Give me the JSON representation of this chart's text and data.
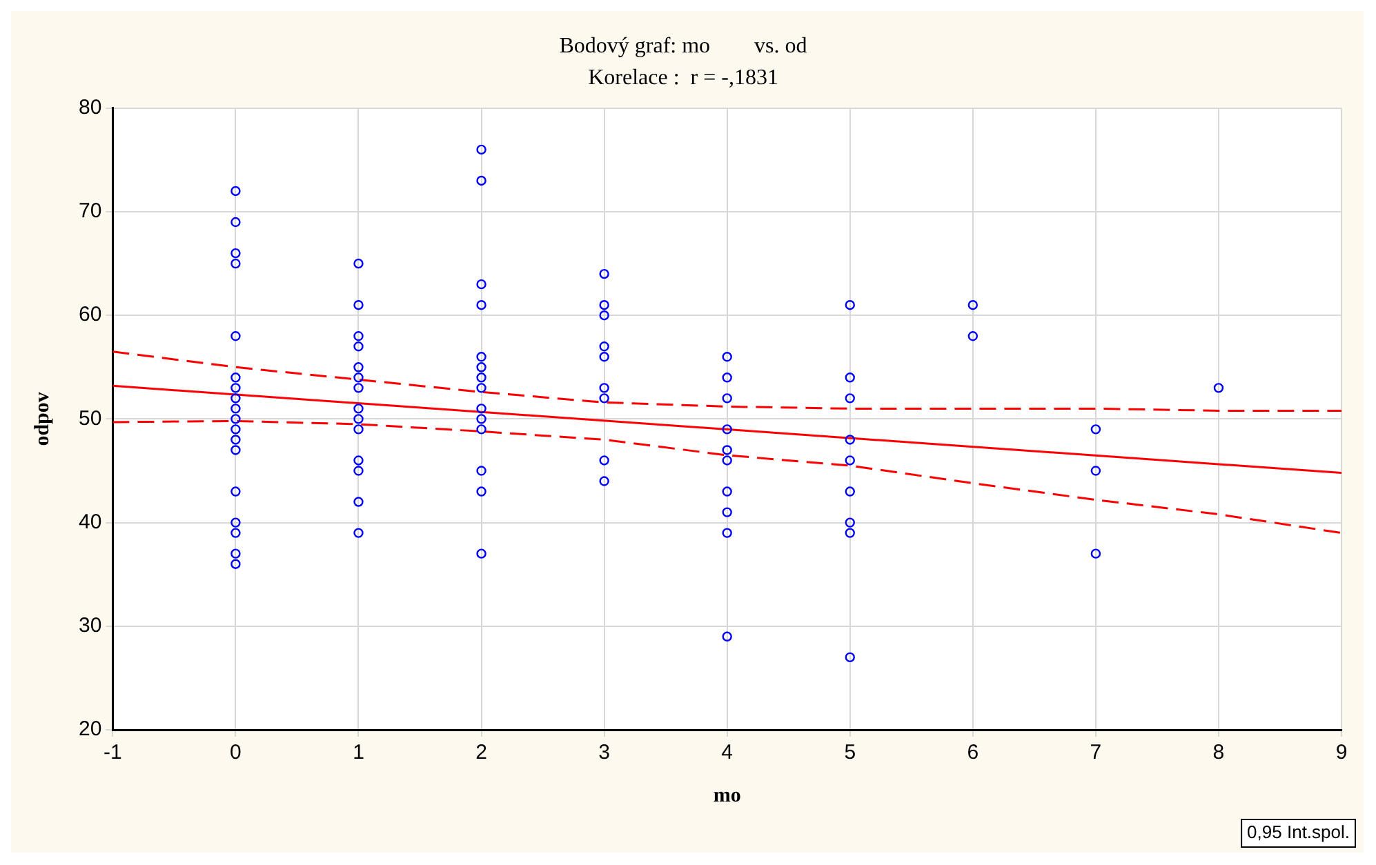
{
  "chart_data": {
    "type": "scatter",
    "title": "Bodový graf: mo        vs. od",
    "subtitle": "Korelace :  r = -,1831",
    "xlabel": "mo",
    "ylabel": "odpov",
    "xlim": [
      -1,
      9
    ],
    "xticks": [
      -1,
      0,
      1,
      2,
      3,
      4,
      5,
      6,
      7,
      8,
      9
    ],
    "ylim": [
      20,
      80
    ],
    "yticks": [
      20,
      30,
      40,
      50,
      60,
      70,
      80
    ],
    "grid": true,
    "legend": false,
    "marker": "circle",
    "annotations": [
      "0,95 Int.spol."
    ],
    "series": [
      {
        "type": "scatter",
        "color": "#0000ff",
        "x": [
          0,
          0,
          0,
          0,
          0,
          0,
          0,
          0,
          0,
          0,
          0,
          0,
          0,
          0,
          0,
          0,
          0,
          0,
          1,
          1,
          1,
          1,
          1,
          1,
          1,
          1,
          1,
          1,
          1,
          1,
          1,
          1,
          2,
          2,
          2,
          2,
          2,
          2,
          2,
          2,
          2,
          2,
          2,
          2,
          2,
          2,
          3,
          3,
          3,
          3,
          3,
          3,
          3,
          3,
          3,
          4,
          4,
          4,
          4,
          4,
          4,
          4,
          4,
          4,
          4,
          5,
          5,
          5,
          5,
          5,
          5,
          5,
          5,
          5,
          6,
          6,
          7,
          7,
          7,
          8
        ],
        "values": [
          72,
          69,
          66,
          65,
          58,
          54,
          53,
          52,
          51,
          50,
          49,
          48,
          47,
          43,
          40,
          39,
          37,
          36,
          65,
          61,
          58,
          57,
          55,
          54,
          53,
          51,
          50,
          49,
          46,
          45,
          42,
          39,
          76,
          73,
          63,
          61,
          56,
          55,
          54,
          53,
          51,
          50,
          49,
          45,
          43,
          37,
          64,
          61,
          60,
          57,
          56,
          53,
          52,
          46,
          44,
          56,
          54,
          52,
          49,
          47,
          46,
          43,
          41,
          39,
          29,
          61,
          54,
          52,
          48,
          46,
          43,
          40,
          39,
          27,
          61,
          58,
          49,
          45,
          37,
          53
        ]
      },
      {
        "type": "line",
        "color": "#ff0000",
        "marker": "none",
        "line_style": "solid",
        "x": [
          -1,
          9
        ],
        "values": [
          53.2,
          44.8
        ]
      },
      {
        "type": "line",
        "color": "#ff0000",
        "marker": "none",
        "line_style": "dashed",
        "x": [
          -1,
          0,
          1,
          2,
          3,
          4,
          5,
          6,
          7,
          8,
          9
        ],
        "values": [
          56.5,
          55,
          53.8,
          52.6,
          51.6,
          51.2,
          51,
          51,
          51,
          50.8,
          50.8
        ]
      },
      {
        "type": "line",
        "color": "#ff0000",
        "marker": "none",
        "line_style": "dashed",
        "x": [
          -1,
          0,
          1,
          2,
          3,
          4,
          5,
          6,
          7,
          8,
          9
        ],
        "values": [
          49.7,
          49.8,
          49.5,
          48.8,
          48,
          46.5,
          45.5,
          43.8,
          42.2,
          40.8,
          39
        ]
      }
    ]
  }
}
